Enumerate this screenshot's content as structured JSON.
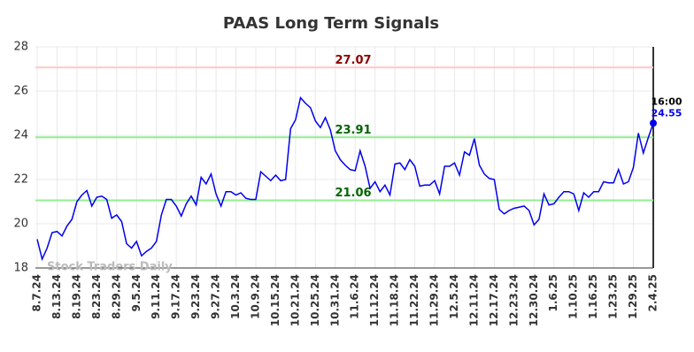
{
  "chart_data": {
    "type": "line",
    "title": "PAAS Long Term Signals",
    "watermark": "Stock Traders Daily",
    "categories": [
      "8.7.24",
      null,
      null,
      null,
      "8.13.24",
      null,
      null,
      null,
      "8.19.24",
      null,
      null,
      null,
      "8.23.24",
      null,
      null,
      null,
      "8.29.24",
      null,
      null,
      null,
      "9.5.24",
      null,
      null,
      null,
      "9.11.24",
      null,
      null,
      null,
      "9.17.24",
      null,
      null,
      null,
      "9.23.24",
      null,
      null,
      null,
      "9.27.24",
      null,
      null,
      null,
      "10.3.24",
      null,
      null,
      null,
      "10.9.24",
      null,
      null,
      null,
      "10.15.24",
      null,
      null,
      null,
      "10.21.24",
      null,
      null,
      null,
      "10.25.24",
      null,
      null,
      null,
      "10.31.24",
      null,
      null,
      null,
      "11.6.24",
      null,
      null,
      null,
      "11.12.24",
      null,
      null,
      null,
      "11.18.24",
      null,
      null,
      null,
      "11.22.24",
      null,
      null,
      null,
      "11.29.24",
      null,
      null,
      null,
      "12.5.24",
      null,
      null,
      null,
      "12.11.24",
      null,
      null,
      null,
      "12.17.24",
      null,
      null,
      null,
      "12.23.24",
      null,
      null,
      null,
      "12.30.24",
      null,
      null,
      null,
      "1.6.25",
      null,
      null,
      null,
      "1.10.25",
      null,
      null,
      null,
      "1.16.25",
      null,
      null,
      null,
      "1.23.25",
      null,
      null,
      null,
      "1.29.25",
      null,
      null,
      null,
      "2.4.25"
    ],
    "values": [
      19.3,
      18.4,
      18.9,
      19.6,
      19.65,
      19.45,
      19.9,
      20.2,
      21.0,
      21.3,
      21.5,
      20.8,
      21.2,
      21.25,
      21.1,
      20.25,
      20.4,
      20.1,
      19.1,
      18.9,
      19.2,
      18.55,
      18.75,
      18.9,
      19.2,
      20.4,
      21.1,
      21.1,
      20.8,
      20.35,
      20.9,
      21.25,
      20.85,
      22.1,
      21.8,
      22.25,
      21.35,
      20.8,
      21.45,
      21.45,
      21.3,
      21.4,
      21.15,
      21.1,
      21.1,
      22.35,
      22.15,
      21.95,
      22.2,
      21.95,
      22.0,
      24.3,
      24.7,
      25.7,
      25.45,
      25.25,
      24.65,
      24.35,
      24.8,
      24.25,
      23.3,
      22.9,
      22.65,
      22.45,
      22.4,
      23.3,
      22.6,
      21.6,
      21.9,
      21.45,
      21.75,
      21.3,
      22.7,
      22.75,
      22.45,
      22.9,
      22.6,
      21.7,
      21.75,
      21.75,
      21.95,
      21.35,
      22.6,
      22.6,
      22.75,
      22.2,
      23.25,
      23.1,
      23.85,
      22.65,
      22.25,
      22.05,
      22.0,
      20.65,
      20.45,
      20.6,
      20.7,
      20.75,
      20.8,
      20.6,
      19.95,
      20.2,
      21.35,
      20.85,
      20.9,
      21.2,
      21.45,
      21.45,
      21.35,
      20.6,
      21.4,
      21.2,
      21.45,
      21.45,
      21.9,
      21.85,
      21.85,
      22.45,
      21.8,
      21.9,
      22.55,
      24.1,
      23.2,
      23.9,
      24.55
    ],
    "color": "#0000ee",
    "last_time": "16:00",
    "reference_lines": [
      {
        "value": 27.07,
        "color": "#ffc8c8",
        "label_color": "#8b0000"
      },
      {
        "value": 23.91,
        "color": "#90ee90",
        "label_color": "#006400"
      },
      {
        "value": 21.06,
        "color": "#90ee90",
        "label_color": "#006400"
      }
    ],
    "ylim": [
      18,
      28
    ],
    "yticks": [
      18,
      20,
      22,
      24,
      26,
      28
    ],
    "grid": true
  }
}
